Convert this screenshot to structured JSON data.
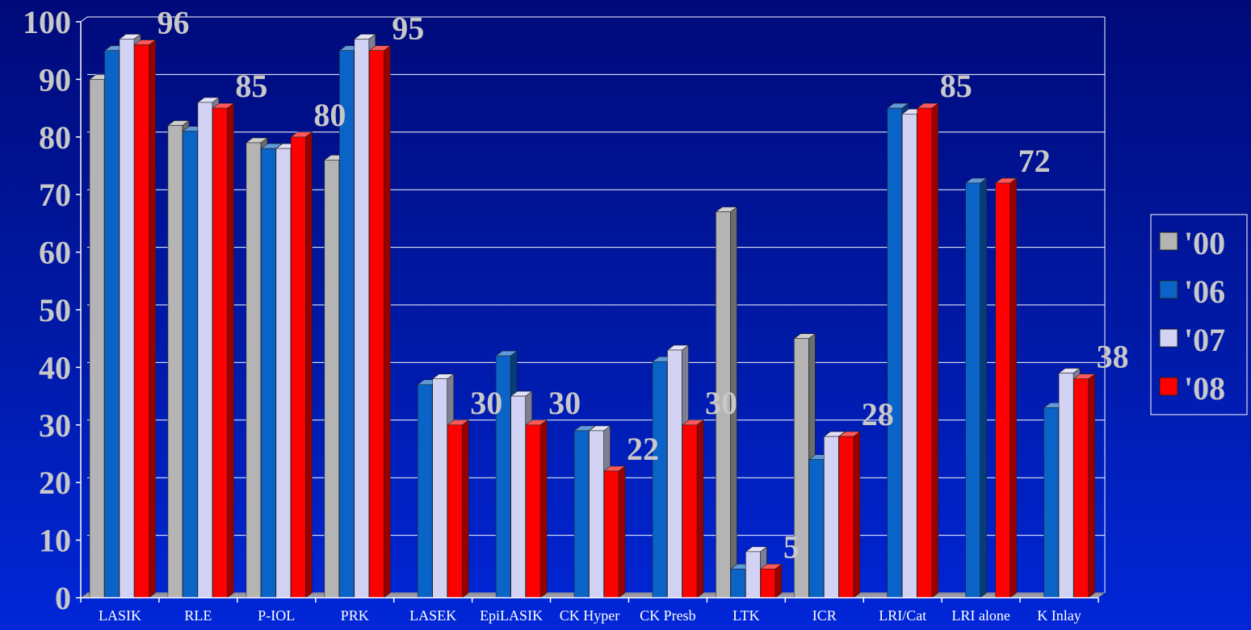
{
  "chart_data": {
    "type": "bar",
    "categories": [
      "LASIK",
      "RLE",
      "P-IOL",
      "PRK",
      "LASEK",
      "EpiLASIK",
      "CK Hyper",
      "CK Presb",
      "LTK",
      "ICR",
      "LRI/Cat",
      "LRI alone",
      "K Inlay"
    ],
    "series": [
      {
        "name": "'00",
        "color": "#b4b4b4",
        "values": [
          90,
          82,
          79,
          76,
          0,
          0,
          0,
          0,
          67,
          45,
          0,
          0,
          0
        ]
      },
      {
        "name": "'06",
        "color": "#0a64c8",
        "values": [
          95,
          81,
          78,
          95,
          37,
          42,
          29,
          41,
          5,
          24,
          85,
          72,
          33
        ]
      },
      {
        "name": "'07",
        "color": "#d2d2f5",
        "values": [
          97,
          86,
          78,
          97,
          38,
          35,
          29,
          43,
          8,
          28,
          84,
          0,
          39
        ]
      },
      {
        "name": "'08",
        "color": "#ff0000",
        "values": [
          96,
          85,
          80,
          95,
          30,
          30,
          22,
          30,
          5,
          28,
          85,
          72,
          38
        ]
      }
    ],
    "data_labels": [
      "96",
      "85",
      "80",
      "95",
      "30",
      "30",
      "22",
      "30",
      "5",
      "28",
      "85",
      "72",
      "38"
    ],
    "y_ticks": [
      "0",
      "10",
      "20",
      "30",
      "40",
      "50",
      "60",
      "70",
      "80",
      "90",
      "100"
    ],
    "ylim": [
      0,
      100
    ],
    "title": "",
    "xlabel": "",
    "ylabel": "",
    "grid": true,
    "legend_position": "right"
  }
}
